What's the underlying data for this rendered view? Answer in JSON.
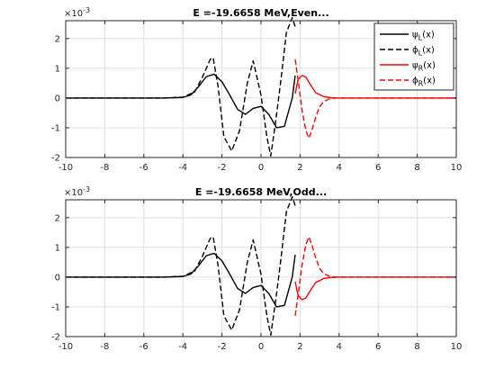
{
  "chart_data": [
    {
      "type": "line",
      "title": "E =-19.6658 MeV,Even...",
      "xlabel": "",
      "ylabel": "",
      "xlim": [
        -10,
        10
      ],
      "ylim": [
        -2,
        2.6
      ],
      "y_exponent_label": "×10",
      "y_exponent_power": "-3",
      "x_ticks": [
        -10,
        -8,
        -6,
        -4,
        -2,
        0,
        2,
        4,
        6,
        8,
        10
      ],
      "y_ticks": [
        -2,
        -1,
        0,
        1,
        2
      ],
      "grid": true,
      "legend_position": "top-right",
      "legend": [
        {
          "name_base": "ψ",
          "name_sub": "L",
          "name_tail": "(x)",
          "color": "#000000",
          "dash": "solid"
        },
        {
          "name_base": "ϕ",
          "name_sub": "L",
          "name_tail": "(x)",
          "color": "#000000",
          "dash": "dashed"
        },
        {
          "name_base": "ψ",
          "name_sub": "R",
          "name_tail": "(x)",
          "color": "#ff0000",
          "dash": "solid"
        },
        {
          "name_base": "ϕ",
          "name_sub": "R",
          "name_tail": "(x)",
          "color": "#ff0000",
          "dash": "dashed"
        }
      ],
      "series": [
        {
          "color": "#000000",
          "dash": "solid",
          "x": [
            -10,
            -5,
            -4,
            -3.6,
            -3.2,
            -2.8,
            -2.4,
            -2.0,
            -1.6,
            -1.2,
            -0.8,
            -0.4,
            0,
            0.4,
            0.8,
            1.2,
            1.6,
            1.75
          ],
          "y": [
            0,
            0,
            0.02,
            0.1,
            0.38,
            0.72,
            0.8,
            0.55,
            0.1,
            -0.38,
            -0.55,
            -0.35,
            -0.28,
            -0.55,
            -1.0,
            -0.95,
            0.0,
            0.75
          ]
        },
        {
          "color": "#000000",
          "dash": "dashed",
          "x": [
            -10,
            -5,
            -4,
            -3.4,
            -3.0,
            -2.6,
            -2.45,
            -2.2,
            -1.9,
            -1.5,
            -1.1,
            -0.7,
            -0.4,
            0,
            0.3,
            0.5,
            0.75,
            1.0,
            1.3,
            1.6,
            1.75
          ],
          "y": [
            0,
            0,
            0.03,
            0.2,
            0.7,
            1.3,
            1.35,
            0.4,
            -1.3,
            -1.78,
            -1.1,
            0.5,
            1.25,
            0.1,
            -1.3,
            -1.95,
            -0.8,
            0.5,
            2.2,
            2.7,
            2.4
          ]
        },
        {
          "color": "#ff0000",
          "dash": "solid",
          "x": [
            1.75,
            1.9,
            2.1,
            2.3,
            2.5,
            2.8,
            3.2,
            3.6,
            4.0,
            4.6,
            6,
            10
          ],
          "y": [
            0.15,
            0.62,
            0.76,
            0.7,
            0.48,
            0.18,
            0.05,
            0.01,
            0.0,
            0.0,
            0,
            0
          ]
        },
        {
          "color": "#ff0000",
          "dash": "dashed",
          "x": [
            1.75,
            1.9,
            2.1,
            2.3,
            2.45,
            2.6,
            2.8,
            3.0,
            3.2,
            3.5,
            3.8,
            4.2,
            5,
            10
          ],
          "y": [
            1.3,
            0.6,
            -0.4,
            -1.1,
            -1.35,
            -1.1,
            -0.65,
            -0.3,
            -0.12,
            -0.03,
            0.0,
            0.0,
            0,
            0
          ]
        }
      ]
    },
    {
      "type": "line",
      "title": "E =-19.6658 MeV,Odd...",
      "xlabel": "",
      "ylabel": "",
      "xlim": [
        -10,
        10
      ],
      "ylim": [
        -2,
        2.6
      ],
      "y_exponent_label": "×10",
      "y_exponent_power": "-3",
      "x_ticks": [
        -10,
        -8,
        -6,
        -4,
        -2,
        0,
        2,
        4,
        6,
        8,
        10
      ],
      "y_ticks": [
        -2,
        -1,
        0,
        1,
        2
      ],
      "grid": true,
      "series": [
        {
          "color": "#000000",
          "dash": "solid",
          "x": [
            -10,
            -5,
            -4,
            -3.6,
            -3.2,
            -2.8,
            -2.4,
            -2.0,
            -1.6,
            -1.2,
            -0.8,
            -0.4,
            0,
            0.4,
            0.8,
            1.2,
            1.6,
            1.75
          ],
          "y": [
            0,
            0,
            0.02,
            0.1,
            0.38,
            0.72,
            0.8,
            0.55,
            0.1,
            -0.38,
            -0.55,
            -0.35,
            -0.28,
            -0.55,
            -1.0,
            -0.95,
            0.0,
            0.75
          ]
        },
        {
          "color": "#000000",
          "dash": "dashed",
          "x": [
            -10,
            -5,
            -4,
            -3.4,
            -3.0,
            -2.6,
            -2.45,
            -2.2,
            -1.9,
            -1.5,
            -1.1,
            -0.7,
            -0.4,
            0,
            0.3,
            0.5,
            0.75,
            1.0,
            1.3,
            1.6,
            1.75
          ],
          "y": [
            0,
            0,
            0.03,
            0.2,
            0.7,
            1.3,
            1.35,
            0.4,
            -1.3,
            -1.78,
            -1.1,
            0.5,
            1.25,
            0.1,
            -1.3,
            -1.95,
            -0.8,
            0.5,
            2.2,
            2.7,
            2.4
          ]
        },
        {
          "color": "#ff0000",
          "dash": "solid",
          "x": [
            1.75,
            1.9,
            2.1,
            2.3,
            2.5,
            2.8,
            3.2,
            3.6,
            4.0,
            4.6,
            6,
            10
          ],
          "y": [
            -0.15,
            -0.62,
            -0.76,
            -0.7,
            -0.48,
            -0.18,
            -0.05,
            -0.01,
            0.0,
            0.0,
            0,
            0
          ]
        },
        {
          "color": "#ff0000",
          "dash": "dashed",
          "x": [
            1.75,
            1.9,
            2.1,
            2.3,
            2.45,
            2.6,
            2.8,
            3.0,
            3.2,
            3.5,
            3.8,
            4.2,
            5,
            10
          ],
          "y": [
            -1.3,
            -0.6,
            0.4,
            1.1,
            1.35,
            1.1,
            0.65,
            0.3,
            0.12,
            0.03,
            0.0,
            0.0,
            0,
            0
          ]
        }
      ]
    }
  ]
}
